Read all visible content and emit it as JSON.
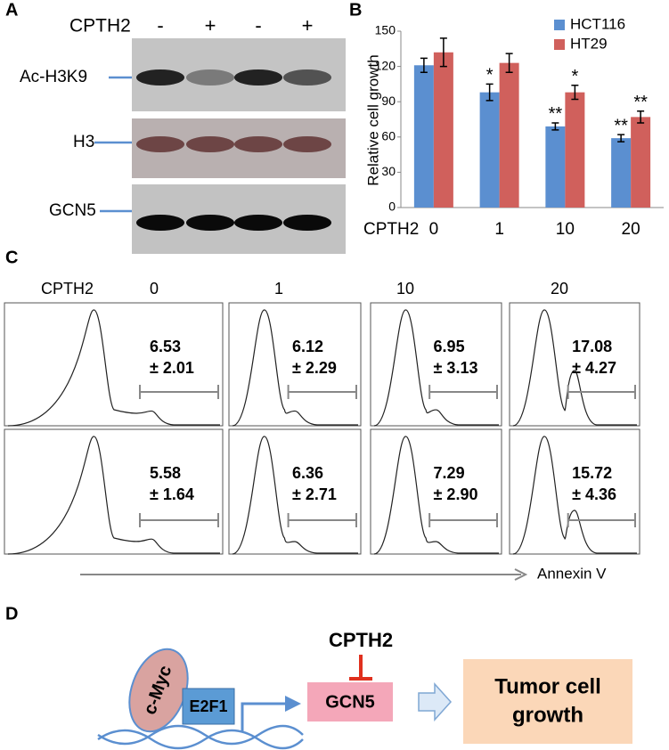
{
  "panel_a": {
    "label": "A",
    "treatment_label": "CPTH2",
    "lanes": [
      "-",
      "+",
      "-",
      "+"
    ],
    "bands": [
      "Ac-H3K9",
      "H3",
      "GCN5"
    ]
  },
  "chart_data": {
    "type": "bar",
    "panel_label": "B",
    "y_label": "Relative cell growth",
    "x_label": "CPTH2",
    "categories": [
      "0",
      "1",
      "10",
      "20"
    ],
    "series": [
      {
        "name": "HCT116",
        "color": "#5b8fd0",
        "values": [
          121,
          98,
          69,
          59
        ],
        "errors": [
          6,
          7,
          3,
          3
        ],
        "significance": [
          null,
          "*",
          "**",
          "**"
        ]
      },
      {
        "name": "HT29",
        "color": "#d0605c",
        "values": [
          132,
          123,
          98,
          77
        ],
        "errors": [
          12,
          8,
          6,
          5
        ],
        "significance": [
          null,
          null,
          "*",
          "**"
        ]
      }
    ],
    "ylim": [
      0,
      150
    ],
    "yticks": [
      0,
      30,
      60,
      90,
      120,
      150
    ],
    "grid": false,
    "legend": "top-right"
  },
  "panel_c": {
    "label": "C",
    "row_label": "CPTH2",
    "columns": [
      "0",
      "1",
      "10",
      "20"
    ],
    "x_axis_label": "Annexin V",
    "rows": [
      [
        {
          "mean": "6.53",
          "sd": "± 2.01"
        },
        {
          "mean": "6.12",
          "sd": "± 2.29"
        },
        {
          "mean": "6.95",
          "sd": "± 3.13"
        },
        {
          "mean": "17.08",
          "sd": "± 4.27"
        }
      ],
      [
        {
          "mean": "5.58",
          "sd": "± 1.64"
        },
        {
          "mean": "6.36",
          "sd": "± 2.71"
        },
        {
          "mean": "7.29",
          "sd": "± 2.90"
        },
        {
          "mean": "15.72",
          "sd": "± 4.36"
        }
      ]
    ]
  },
  "panel_d": {
    "label": "D",
    "inhibitor": "CPTH2",
    "factor": "c-Myc",
    "tf": "E2F1",
    "target": "GCN5",
    "outcome": [
      "Tumor cell",
      "growth"
    ]
  }
}
